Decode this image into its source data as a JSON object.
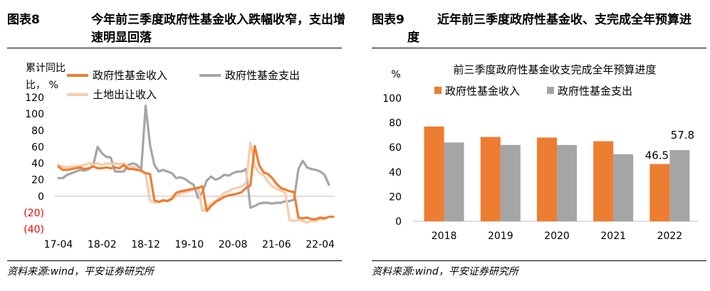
{
  "left": {
    "figure_no": "图表8",
    "title_line1": "今年前三季度政府性基金收入跌幅收窄，支出增",
    "title_line2": "速明显回落",
    "source": "资料来源:wind，平安证券研究所"
  },
  "right": {
    "figure_no": "图表9",
    "title_line1": "近年前三季度政府性基金收、支完成全年预算进",
    "title_line2": "度",
    "source": "资料来源:wind，平安证券研究所"
  },
  "colors": {
    "orange": "#ED7D31",
    "gray": "#A5A5A5",
    "light_orange": "#F8CBAD",
    "negative": "#FF0000"
  },
  "chart_data": [
    {
      "type": "line",
      "ylabel": "累计同比，%",
      "ylim": [
        -40,
        120
      ],
      "yticks": [
        "(40)",
        "(20)",
        "0",
        "20",
        "40",
        "60",
        "80",
        "100",
        "120"
      ],
      "ytick_values": [
        -40,
        -20,
        0,
        20,
        40,
        60,
        80,
        100,
        120
      ],
      "xticks": [
        "17-04",
        "18-02",
        "18-12",
        "19-10",
        "20-08",
        "21-06",
        "22-04"
      ],
      "xtick_index": [
        0,
        10,
        20,
        30,
        40,
        50,
        60
      ],
      "legend": [
        "政府性基金收入",
        "政府性基金支出",
        "土地出让收入"
      ],
      "grid": false,
      "series": [
        {
          "name": "政府性基金收入",
          "values": [
            36,
            32,
            32,
            33,
            34,
            35,
            33,
            34,
            36,
            34,
            34,
            35,
            34,
            35,
            34,
            38,
            33,
            33,
            32,
            31,
            28,
            27,
            -5,
            -7,
            -5,
            -6,
            -3,
            4,
            6,
            7,
            8,
            9,
            10,
            12,
            -18,
            -12,
            -7,
            -4,
            -1,
            1,
            2,
            3,
            5,
            10,
            13,
            61,
            38,
            29,
            27,
            22,
            15,
            10,
            8,
            6,
            5,
            -26,
            -27,
            -26,
            -28,
            -28,
            -26,
            -27,
            -25,
            -25
          ],
          "color": "#ED7D31"
        },
        {
          "name": "政府性基金支出",
          "values": [
            22,
            22,
            26,
            28,
            30,
            32,
            31,
            33,
            38,
            60,
            52,
            48,
            47,
            30,
            30,
            30,
            38,
            40,
            38,
            33,
            110,
            62,
            38,
            30,
            32,
            30,
            28,
            22,
            23,
            21,
            17,
            14,
            -2,
            5,
            19,
            24,
            20,
            22,
            26,
            25,
            28,
            30,
            30,
            33,
            -14,
            -12,
            -9,
            -8,
            -8,
            -9,
            -8,
            -8,
            -6,
            -6,
            -4,
            33,
            43,
            35,
            33,
            32,
            30,
            26,
            14
          ],
          "color": "#A5A5A5"
        },
        {
          "name": "土地出让收入",
          "values": [
            38,
            36,
            35,
            36,
            36,
            37,
            38,
            40,
            38,
            40,
            38,
            40,
            39,
            40,
            39,
            40,
            36,
            36,
            34,
            30,
            27,
            -6,
            -8,
            -7,
            -6,
            -5,
            -4,
            0,
            3,
            5,
            6,
            8,
            11,
            -18,
            -15,
            -9,
            -6,
            -1,
            4,
            6,
            9,
            10,
            12,
            16,
            65,
            37,
            28,
            26,
            18,
            12,
            9,
            7,
            4,
            -29,
            -30,
            -29,
            -30,
            -32,
            -30,
            -30,
            -28,
            -28
          ],
          "color": "#F8CBAD"
        }
      ]
    },
    {
      "type": "bar",
      "title": "前三季度政府性基金收支完成全年预算进度",
      "ylabel": "%",
      "ylim": [
        0,
        100
      ],
      "yticks": [
        "0",
        "20",
        "40",
        "60",
        "80",
        "100"
      ],
      "categories": [
        "2018",
        "2019",
        "2020",
        "2021",
        "2022"
      ],
      "legend": [
        "政府性基金收入",
        "政府性基金支出"
      ],
      "grid": false,
      "series": [
        {
          "name": "政府性基金收入",
          "values": [
            77,
            68.5,
            68,
            65,
            46.5
          ],
          "color": "#ED7D31"
        },
        {
          "name": "政府性基金支出",
          "values": [
            64,
            62,
            62,
            54.5,
            57.8
          ],
          "color": "#A5A5A5"
        }
      ],
      "data_labels": [
        {
          "series": 0,
          "category": "2022",
          "text": "46.5"
        },
        {
          "series": 1,
          "category": "2022",
          "text": "57.8"
        }
      ]
    }
  ]
}
